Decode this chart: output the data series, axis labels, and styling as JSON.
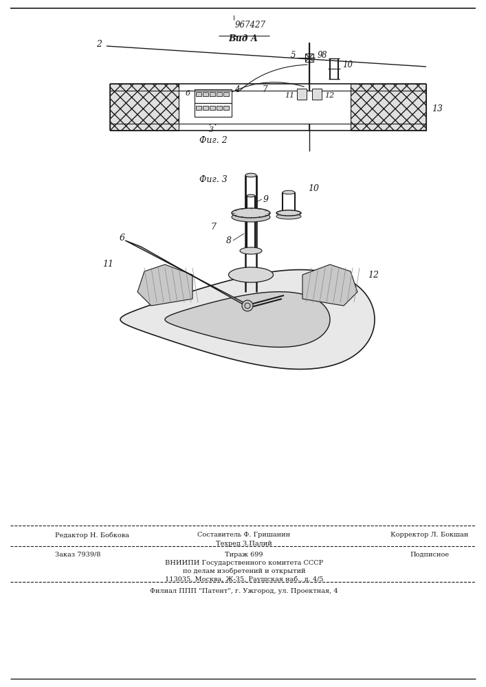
{
  "patent_number": "967427",
  "view_label": "Вид А",
  "fig2_label": "Фиг. 2",
  "fig3_label": "Фиг. 3",
  "footer": {
    "editor": "Редактор Н. Бобкова",
    "composer": "Составитель Ф. Гришанин",
    "techred": "Техред З.Палий",
    "corrector": "Корректор Л. Бокшан",
    "order": "Заказ 7939/8",
    "circulation": "Тираж 699",
    "subscription": "Подписное",
    "vnipi_line1": "ВНИИПИ Государственного комитета СССР",
    "vnipi_line2": "по делам изобретений и открытий",
    "vnipi_line3": "113035, Москва, Ж-35, Раушская наб., д. 4/5",
    "filial": "Филиал ППП \"Патент\", г. Ужгород, ул. Проектная, 4"
  },
  "bg_color": "#ffffff",
  "line_color": "#1a1a1a"
}
